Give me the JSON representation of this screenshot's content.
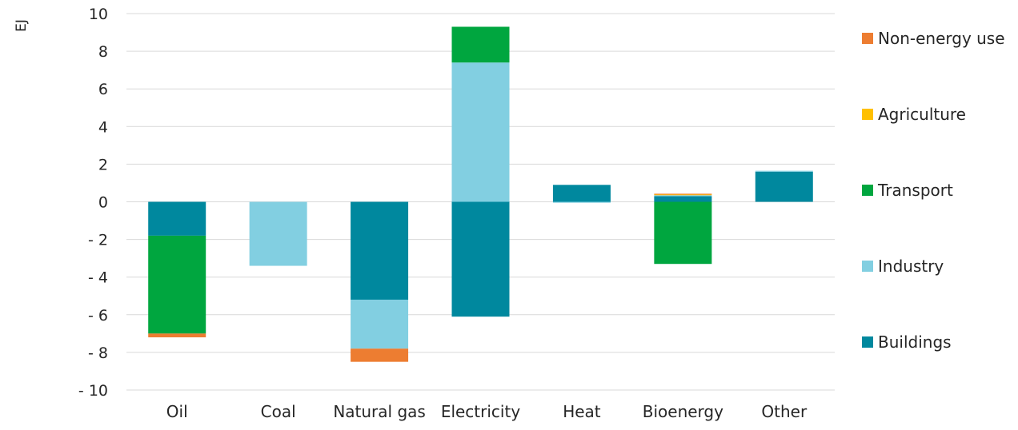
{
  "chart_data": {
    "type": "bar",
    "stacked": true,
    "ylabel": "EJ",
    "ylim": [
      -10,
      10
    ],
    "yticks": [
      10,
      8,
      6,
      4,
      2,
      0,
      -2,
      -4,
      -6,
      -8,
      -10
    ],
    "ytick_labels": [
      "10",
      "8",
      "6",
      "4",
      "2",
      "0",
      "- 2",
      "- 4",
      "- 6",
      "- 8",
      "- 10"
    ],
    "grid": true,
    "legend_position": "right",
    "categories": [
      "Oil",
      "Coal",
      "Natural gas",
      "Electricity",
      "Heat",
      "Bioenergy",
      "Other"
    ],
    "series": [
      {
        "name": "Buildings",
        "color": "#00889E",
        "values": [
          -1.8,
          0,
          -5.2,
          -6.1,
          0.9,
          0.3,
          1.6
        ]
      },
      {
        "name": "Industry",
        "color": "#82CFE1",
        "values": [
          0,
          -3.4,
          -2.6,
          7.4,
          -0.05,
          0.05,
          0.05
        ]
      },
      {
        "name": "Transport",
        "color": "#00A63F",
        "values": [
          -5.2,
          0,
          0,
          1.9,
          0,
          -3.3,
          0
        ]
      },
      {
        "name": "Agriculture",
        "color": "#FFC000",
        "values": [
          0,
          0,
          0,
          0,
          0,
          0.05,
          0
        ]
      },
      {
        "name": "Non-energy use",
        "color": "#ED7D31",
        "values": [
          -0.2,
          0,
          -0.7,
          0,
          0,
          0.03,
          0
        ]
      }
    ],
    "legend_order": [
      "Non-energy use",
      "Agriculture",
      "Transport",
      "Industry",
      "Buildings"
    ]
  }
}
